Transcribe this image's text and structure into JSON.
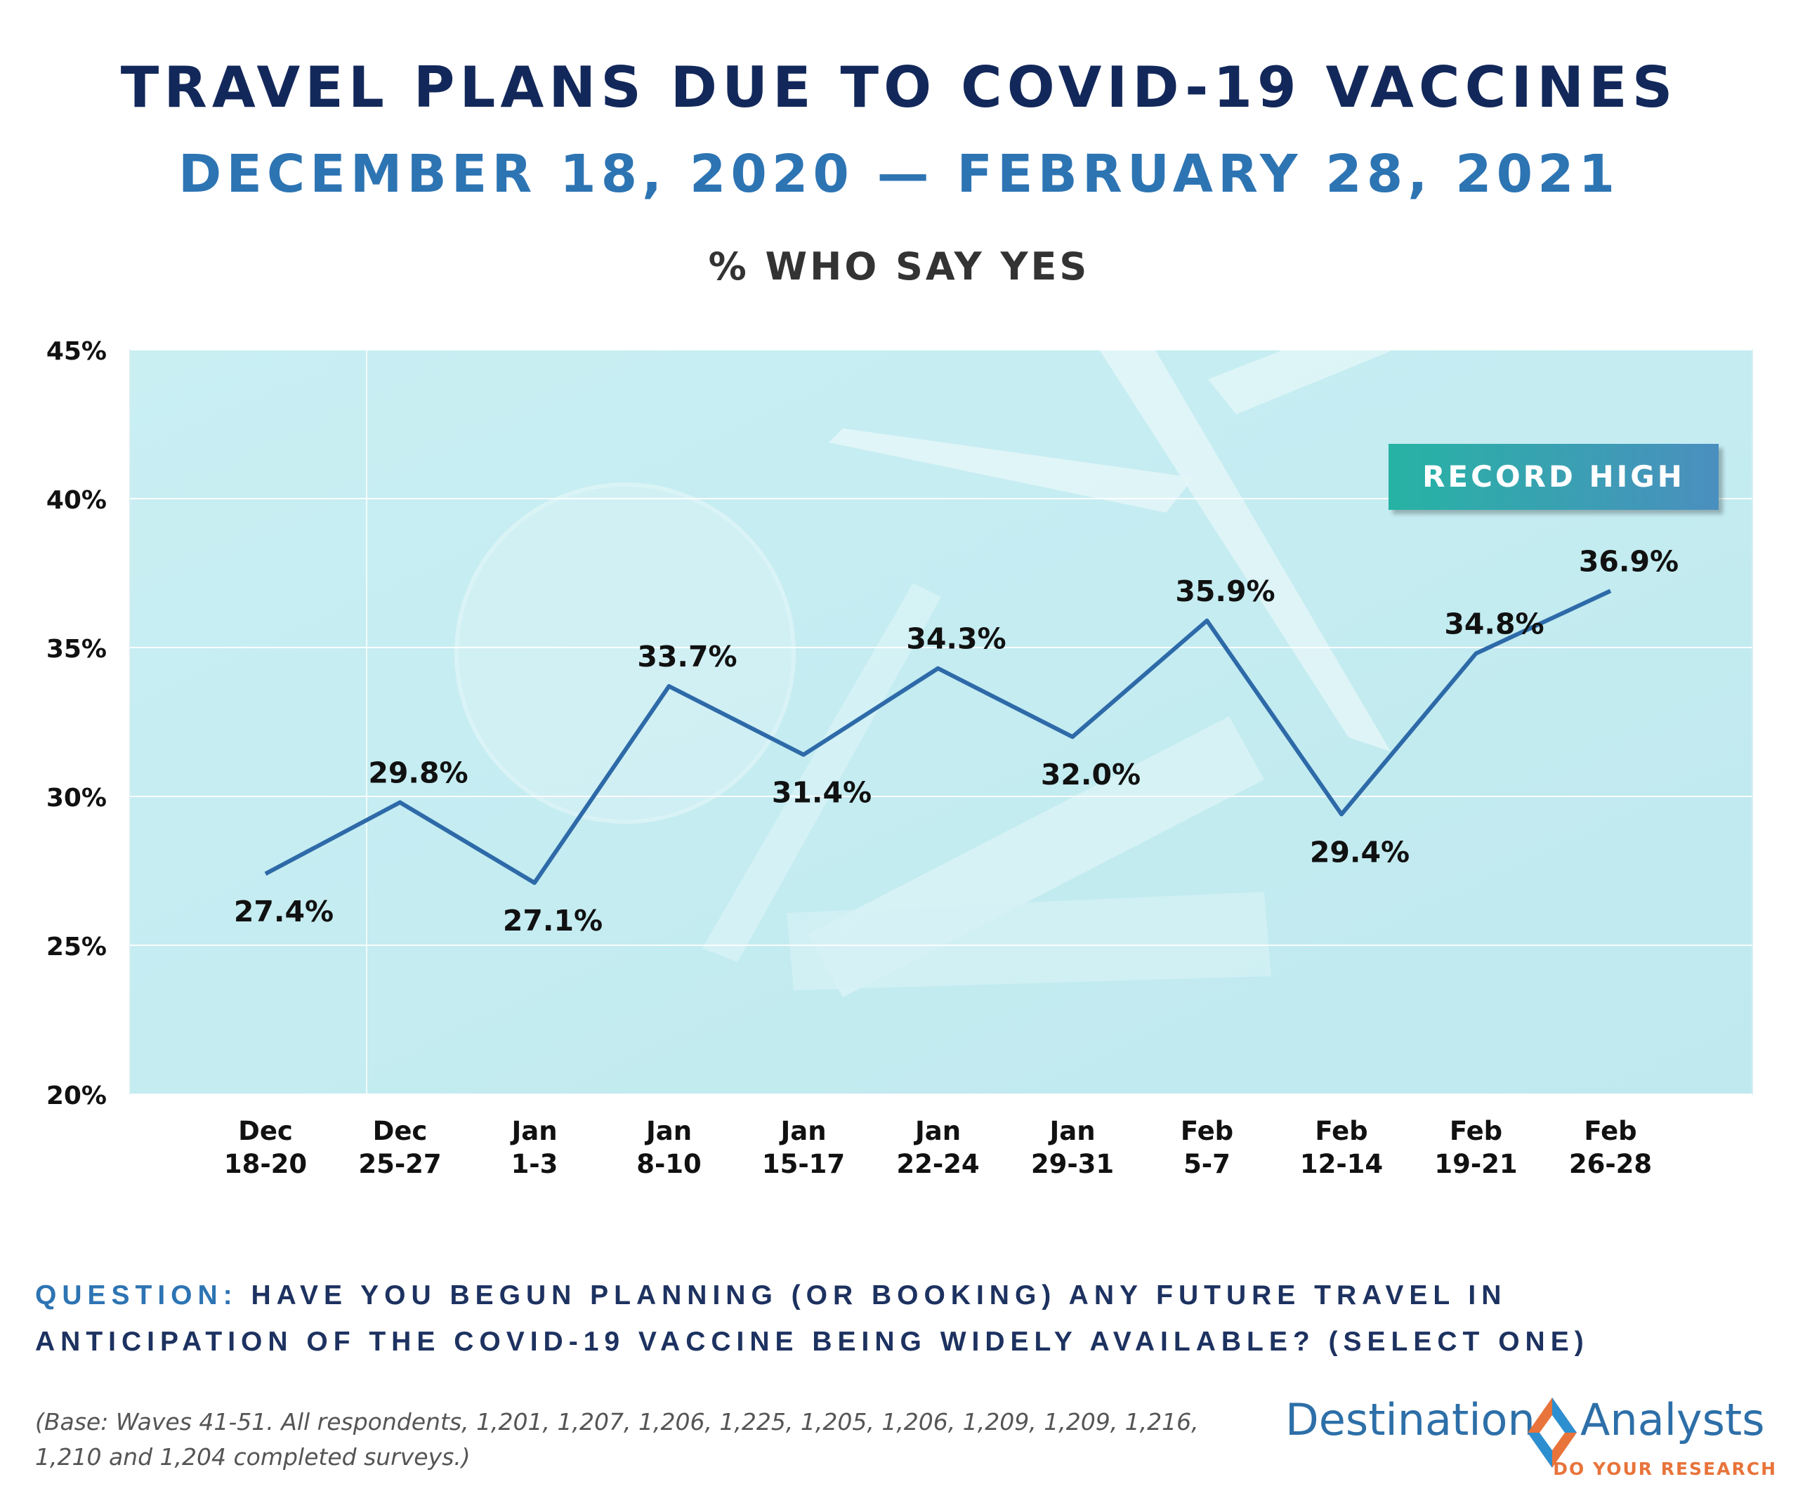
{
  "header": {
    "title": "TRAVEL PLANS DUE TO COVID-19 VACCINES",
    "subtitle": "DECEMBER 18, 2020 — FEBRUARY 28, 2021",
    "metric": "% WHO SAY YES"
  },
  "chart_data": {
    "type": "line",
    "title": "TRAVEL PLANS DUE TO COVID-19 VACCINES",
    "ylim": [
      20,
      45
    ],
    "yticks": [
      20,
      25,
      30,
      35,
      40,
      45
    ],
    "ytick_labels": [
      "20%",
      "25%",
      "30%",
      "35%",
      "40%",
      "45%"
    ],
    "categories": [
      [
        "Dec",
        "18-20"
      ],
      [
        "Dec",
        "25-27"
      ],
      [
        "Jan",
        "1-3"
      ],
      [
        "Jan",
        "8-10"
      ],
      [
        "Jan",
        "15-17"
      ],
      [
        "Jan",
        "22-24"
      ],
      [
        "Jan",
        "29-31"
      ],
      [
        "Feb",
        "5-7"
      ],
      [
        "Feb",
        "12-14"
      ],
      [
        "Feb",
        "19-21"
      ],
      [
        "Feb",
        "26-28"
      ]
    ],
    "values": [
      27.4,
      29.8,
      27.1,
      33.7,
      31.4,
      34.3,
      32.0,
      35.9,
      29.4,
      34.8,
      36.9
    ],
    "data_labels": [
      "27.4%",
      "29.8%",
      "27.1%",
      "33.7%",
      "31.4%",
      "34.3%",
      "32.0%",
      "35.9%",
      "29.4%",
      "34.8%",
      "36.9%"
    ],
    "grid": true,
    "line_color": "#2e6aa8",
    "plot_background": "#c9eef2",
    "annotation": {
      "text": "RECORD HIGH",
      "colors": [
        "#27b3a4",
        "#4a8fbf"
      ]
    }
  },
  "question": {
    "label": "QUESTION:",
    "text": "HAVE YOU BEGUN PLANNING (OR BOOKING) ANY FUTURE TRAVEL IN ANTICIPATION OF THE COVID-19 VACCINE BEING WIDELY AVAILABLE? (SELECT ONE)"
  },
  "base_note": "(Base: Waves 41-51. All respondents,  1,201, 1,207, 1,206, 1,225, 1,205, 1,206, 1,209, 1,209, 1,216, 1,210 and 1,204 completed surveys.)",
  "logo": {
    "left_text": "Destination",
    "right_text": "Analysts",
    "tagline": "DO YOUR RESEARCH",
    "colors": {
      "blue": "#2d6fa8",
      "orange": "#e8743b"
    }
  }
}
